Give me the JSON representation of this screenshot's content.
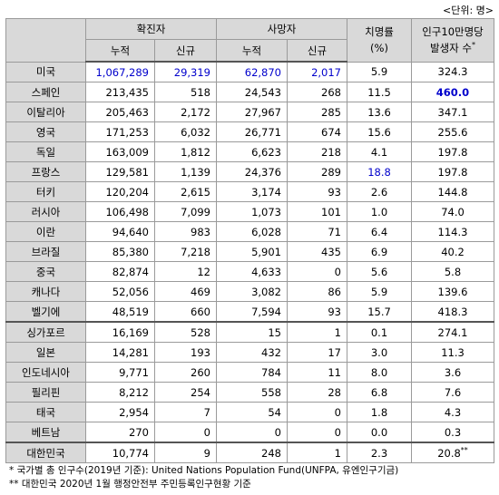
{
  "unit_label": "<단위: 명>",
  "header": {
    "country_col": "",
    "confirmed": "확진자",
    "deaths": "사망자",
    "fatality": "치명률",
    "fatality_unit": "(%)",
    "per100k_line1": "인구10만명당",
    "per100k_line2": "발생자 수",
    "per100k_mark": "*",
    "cumulative": "누적",
    "new": "신규"
  },
  "rows": [
    {
      "country": "미국",
      "conf_cum": "1,067,289",
      "conf_new": "29,319",
      "death_cum": "62,870",
      "death_new": "2,017",
      "cfr": "5.9",
      "per100k": "324.3"
    },
    {
      "country": "스페인",
      "conf_cum": "213,435",
      "conf_new": "518",
      "death_cum": "24,543",
      "death_new": "268",
      "cfr": "11.5",
      "per100k": "460.0"
    },
    {
      "country": "이탈리아",
      "conf_cum": "205,463",
      "conf_new": "2,172",
      "death_cum": "27,967",
      "death_new": "285",
      "cfr": "13.6",
      "per100k": "347.1"
    },
    {
      "country": "영국",
      "conf_cum": "171,253",
      "conf_new": "6,032",
      "death_cum": "26,771",
      "death_new": "674",
      "cfr": "15.6",
      "per100k": "255.6"
    },
    {
      "country": "독일",
      "conf_cum": "163,009",
      "conf_new": "1,812",
      "death_cum": "6,623",
      "death_new": "218",
      "cfr": "4.1",
      "per100k": "197.8"
    },
    {
      "country": "프랑스",
      "conf_cum": "129,581",
      "conf_new": "1,139",
      "death_cum": "24,376",
      "death_new": "289",
      "cfr": "18.8",
      "per100k": "197.8"
    },
    {
      "country": "터키",
      "conf_cum": "120,204",
      "conf_new": "2,615",
      "death_cum": "3,174",
      "death_new": "93",
      "cfr": "2.6",
      "per100k": "144.8"
    },
    {
      "country": "러시아",
      "conf_cum": "106,498",
      "conf_new": "7,099",
      "death_cum": "1,073",
      "death_new": "101",
      "cfr": "1.0",
      "per100k": "74.0"
    },
    {
      "country": "이란",
      "conf_cum": "94,640",
      "conf_new": "983",
      "death_cum": "6,028",
      "death_new": "71",
      "cfr": "6.4",
      "per100k": "114.3"
    },
    {
      "country": "브라질",
      "conf_cum": "85,380",
      "conf_new": "7,218",
      "death_cum": "5,901",
      "death_new": "435",
      "cfr": "6.9",
      "per100k": "40.2"
    },
    {
      "country": "중국",
      "conf_cum": "82,874",
      "conf_new": "12",
      "death_cum": "4,633",
      "death_new": "0",
      "cfr": "5.6",
      "per100k": "5.8"
    },
    {
      "country": "캐나다",
      "conf_cum": "52,056",
      "conf_new": "469",
      "death_cum": "3,082",
      "death_new": "86",
      "cfr": "5.9",
      "per100k": "139.6"
    },
    {
      "country": "벨기에",
      "conf_cum": "48,519",
      "conf_new": "660",
      "death_cum": "7,594",
      "death_new": "93",
      "cfr": "15.7",
      "per100k": "418.3"
    },
    {
      "country": "싱가포르",
      "conf_cum": "16,169",
      "conf_new": "528",
      "death_cum": "15",
      "death_new": "1",
      "cfr": "0.1",
      "per100k": "274.1"
    },
    {
      "country": "일본",
      "conf_cum": "14,281",
      "conf_new": "193",
      "death_cum": "432",
      "death_new": "17",
      "cfr": "3.0",
      "per100k": "11.3"
    },
    {
      "country": "인도네시아",
      "conf_cum": "9,771",
      "conf_new": "260",
      "death_cum": "784",
      "death_new": "11",
      "cfr": "8.0",
      "per100k": "3.6"
    },
    {
      "country": "필리핀",
      "conf_cum": "8,212",
      "conf_new": "254",
      "death_cum": "558",
      "death_new": "28",
      "cfr": "6.8",
      "per100k": "7.6"
    },
    {
      "country": "태국",
      "conf_cum": "2,954",
      "conf_new": "7",
      "death_cum": "54",
      "death_new": "0",
      "cfr": "1.8",
      "per100k": "4.3"
    },
    {
      "country": "베트남",
      "conf_cum": "270",
      "conf_new": "0",
      "death_cum": "0",
      "death_new": "0",
      "cfr": "0.0",
      "per100k": "0.3"
    },
    {
      "country": "대한민국",
      "conf_cum": "10,774",
      "conf_new": "9",
      "death_cum": "248",
      "death_new": "1",
      "cfr": "2.3",
      "per100k": "20.8",
      "per100k_mark": "**"
    }
  ],
  "highlight_color": "#0000cc",
  "notes": [
    {
      "mark": "*",
      "text": "국가별 총 인구수(2019년 기준): United Nations Population Fund(UNFPA, 유엔인구기금)"
    },
    {
      "mark": "**",
      "text": "대한민국 2020년 1월 행정안전부 주민등록인구현황 기준"
    }
  ]
}
